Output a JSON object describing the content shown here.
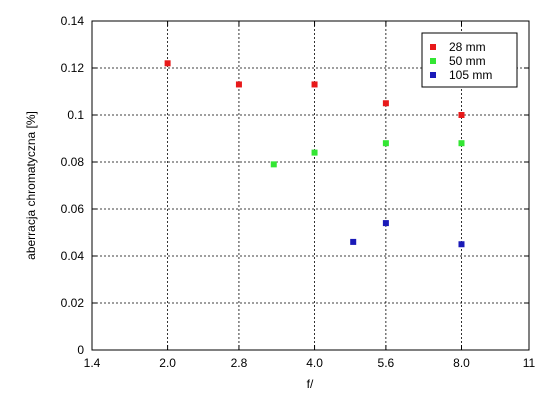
{
  "chart_data": {
    "type": "scatter",
    "title": "",
    "xlabel": "f/",
    "ylabel": "aberracja chromatyczna [%]",
    "x_scale": "log2",
    "x_ticks": [
      {
        "value": 1.4,
        "label": "1.4"
      },
      {
        "value": 2.0,
        "label": "2.0"
      },
      {
        "value": 2.8,
        "label": "2.8"
      },
      {
        "value": 4.0,
        "label": "4.0"
      },
      {
        "value": 5.6,
        "label": "5.6"
      },
      {
        "value": 8.0,
        "label": "8.0"
      },
      {
        "value": 11,
        "label": "11"
      }
    ],
    "xlim": [
      1.4,
      11
    ],
    "ylim": [
      0,
      0.14
    ],
    "y_ticks": [
      {
        "value": 0,
        "label": "0"
      },
      {
        "value": 0.02,
        "label": "0.02"
      },
      {
        "value": 0.04,
        "label": "0.04"
      },
      {
        "value": 0.06,
        "label": "0.06"
      },
      {
        "value": 0.08,
        "label": "0.08"
      },
      {
        "value": 0.1,
        "label": "0.1"
      },
      {
        "value": 0.12,
        "label": "0.12"
      },
      {
        "value": 0.14,
        "label": "0.14"
      }
    ],
    "grid": true,
    "legend_position": "top-right",
    "series": [
      {
        "name": "28 mm",
        "color": "#e8191a",
        "points": [
          [
            2.0,
            0.122
          ],
          [
            2.8,
            0.113
          ],
          [
            4.0,
            0.113
          ],
          [
            5.6,
            0.105
          ],
          [
            8.0,
            0.1
          ]
        ]
      },
      {
        "name": "50 mm",
        "color": "#33e633",
        "points": [
          [
            3.3,
            0.079
          ],
          [
            4.0,
            0.084
          ],
          [
            5.6,
            0.088
          ],
          [
            8.0,
            0.088
          ]
        ]
      },
      {
        "name": "105 mm",
        "color": "#1a1ab8",
        "points": [
          [
            4.8,
            0.046
          ],
          [
            5.6,
            0.054
          ],
          [
            8.0,
            0.045
          ]
        ]
      }
    ]
  }
}
